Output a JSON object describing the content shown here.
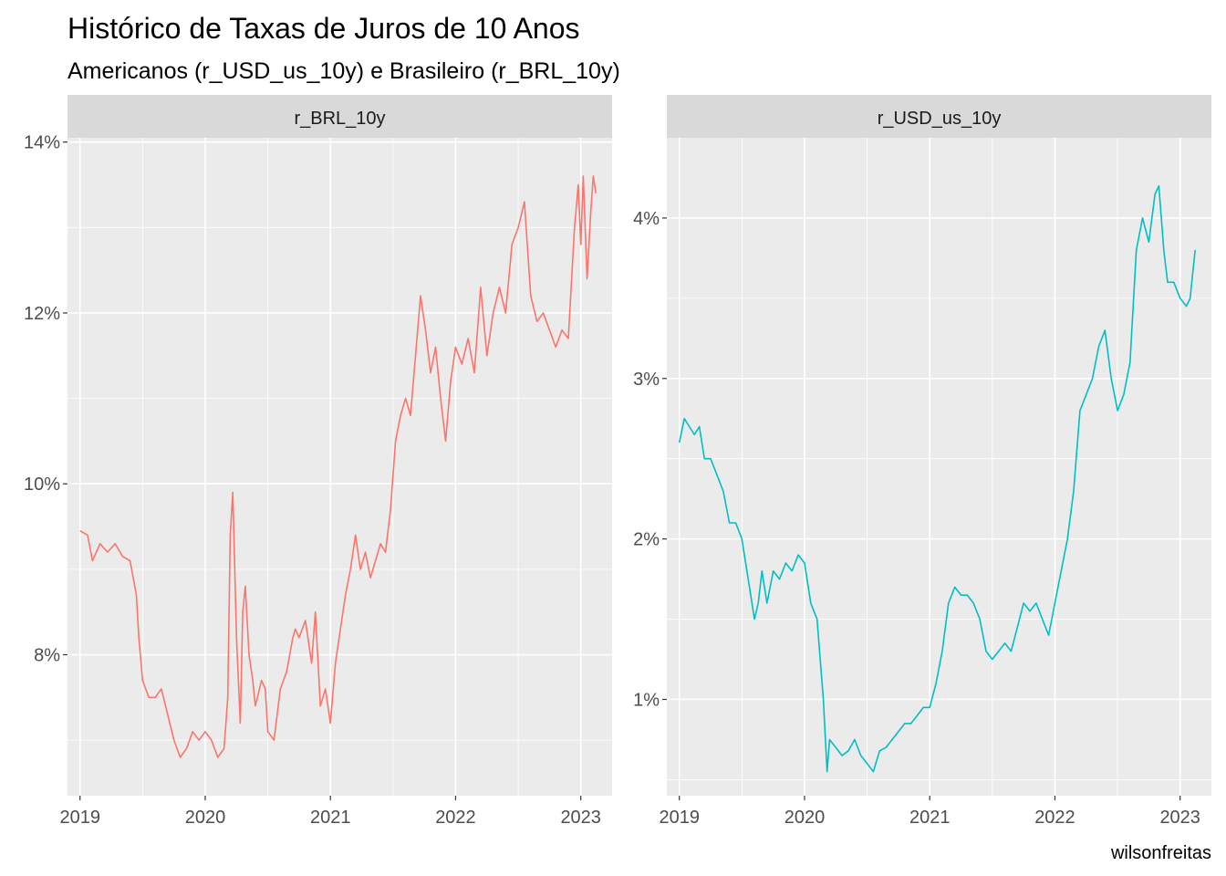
{
  "chart_data": {
    "type": "line",
    "title": "Histórico de Taxas de Juros de 10 Anos",
    "subtitle": "Americanos (r_USD_us_10y) e Brasileiro (r_BRL_10y)",
    "caption": "wilsonfreitas",
    "x_axis": {
      "label": "",
      "range": [
        2018.9,
        2023.25
      ],
      "ticks": [
        2019,
        2020,
        2021,
        2022,
        2023
      ],
      "tick_labels": [
        "2019",
        "2020",
        "2021",
        "2022",
        "2023"
      ]
    },
    "facets": [
      {
        "name": "r_BRL_10y",
        "color": "#F8766D",
        "ylim": [
          6.35,
          14.05
        ],
        "y_ticks": [
          8,
          10,
          12,
          14
        ],
        "y_tick_labels": [
          "8%",
          "10%",
          "12%",
          "14%"
        ],
        "x": [
          2019.0,
          2019.06,
          2019.1,
          2019.16,
          2019.22,
          2019.28,
          2019.34,
          2019.4,
          2019.45,
          2019.47,
          2019.5,
          2019.55,
          2019.6,
          2019.65,
          2019.7,
          2019.75,
          2019.8,
          2019.85,
          2019.9,
          2019.95,
          2020.0,
          2020.05,
          2020.1,
          2020.15,
          2020.18,
          2020.2,
          2020.22,
          2020.25,
          2020.28,
          2020.3,
          2020.32,
          2020.35,
          2020.38,
          2020.4,
          2020.45,
          2020.48,
          2020.5,
          2020.55,
          2020.6,
          2020.65,
          2020.7,
          2020.72,
          2020.75,
          2020.8,
          2020.85,
          2020.88,
          2020.92,
          2020.96,
          2021.0,
          2021.04,
          2021.08,
          2021.12,
          2021.16,
          2021.2,
          2021.24,
          2021.28,
          2021.32,
          2021.36,
          2021.4,
          2021.44,
          2021.48,
          2021.52,
          2021.56,
          2021.6,
          2021.64,
          2021.68,
          2021.72,
          2021.76,
          2021.8,
          2021.84,
          2021.88,
          2021.92,
          2021.96,
          2022.0,
          2022.05,
          2022.1,
          2022.15,
          2022.2,
          2022.25,
          2022.3,
          2022.35,
          2022.4,
          2022.45,
          2022.5,
          2022.55,
          2022.6,
          2022.65,
          2022.7,
          2022.75,
          2022.8,
          2022.85,
          2022.9,
          2022.95,
          2022.98,
          2023.0,
          2023.02,
          2023.05,
          2023.08,
          2023.1,
          2023.12
        ],
        "y": [
          9.45,
          9.4,
          9.1,
          9.3,
          9.2,
          9.3,
          9.15,
          9.1,
          8.7,
          8.2,
          7.7,
          7.5,
          7.5,
          7.6,
          7.3,
          7.0,
          6.8,
          6.9,
          7.1,
          7.0,
          7.1,
          7.0,
          6.8,
          6.9,
          7.5,
          9.4,
          9.9,
          8.2,
          7.2,
          8.5,
          8.8,
          8.0,
          7.7,
          7.4,
          7.7,
          7.6,
          7.1,
          7.0,
          7.6,
          7.8,
          8.2,
          8.3,
          8.2,
          8.4,
          7.9,
          8.5,
          7.4,
          7.6,
          7.2,
          7.9,
          8.3,
          8.7,
          9.0,
          9.4,
          9.0,
          9.2,
          8.9,
          9.1,
          9.3,
          9.2,
          9.7,
          10.5,
          10.8,
          11.0,
          10.8,
          11.5,
          12.2,
          11.8,
          11.3,
          11.6,
          11.0,
          10.5,
          11.2,
          11.6,
          11.4,
          11.7,
          11.3,
          12.3,
          11.5,
          12.0,
          12.3,
          12.0,
          12.8,
          13.0,
          13.3,
          12.2,
          11.9,
          12.0,
          11.8,
          11.6,
          11.8,
          11.7,
          13.0,
          13.5,
          12.8,
          13.6,
          12.4,
          13.2,
          13.6,
          13.4
        ]
      },
      {
        "name": "r_USD_us_10y",
        "color": "#00BFC4",
        "ylim": [
          0.4,
          4.5
        ],
        "y_ticks": [
          1,
          2,
          3,
          4
        ],
        "y_tick_labels": [
          "1%",
          "2%",
          "3%",
          "4%"
        ],
        "x": [
          2019.0,
          2019.04,
          2019.08,
          2019.12,
          2019.16,
          2019.2,
          2019.25,
          2019.3,
          2019.35,
          2019.4,
          2019.45,
          2019.5,
          2019.55,
          2019.6,
          2019.63,
          2019.66,
          2019.7,
          2019.75,
          2019.8,
          2019.85,
          2019.9,
          2019.95,
          2020.0,
          2020.05,
          2020.1,
          2020.15,
          2020.18,
          2020.2,
          2020.25,
          2020.3,
          2020.35,
          2020.4,
          2020.45,
          2020.5,
          2020.55,
          2020.6,
          2020.65,
          2020.7,
          2020.75,
          2020.8,
          2020.85,
          2020.9,
          2020.95,
          2021.0,
          2021.05,
          2021.1,
          2021.15,
          2021.2,
          2021.25,
          2021.3,
          2021.35,
          2021.4,
          2021.45,
          2021.5,
          2021.55,
          2021.6,
          2021.65,
          2021.7,
          2021.75,
          2021.8,
          2021.85,
          2021.9,
          2021.95,
          2022.0,
          2022.05,
          2022.1,
          2022.15,
          2022.2,
          2022.25,
          2022.3,
          2022.35,
          2022.4,
          2022.45,
          2022.5,
          2022.55,
          2022.6,
          2022.65,
          2022.7,
          2022.75,
          2022.8,
          2022.83,
          2022.87,
          2022.9,
          2022.95,
          2023.0,
          2023.05,
          2023.08,
          2023.1,
          2023.12
        ],
        "y": [
          2.6,
          2.75,
          2.7,
          2.65,
          2.7,
          2.5,
          2.5,
          2.4,
          2.3,
          2.1,
          2.1,
          2.0,
          1.75,
          1.5,
          1.6,
          1.8,
          1.6,
          1.8,
          1.75,
          1.85,
          1.8,
          1.9,
          1.85,
          1.6,
          1.5,
          1.0,
          0.55,
          0.75,
          0.7,
          0.65,
          0.68,
          0.75,
          0.65,
          0.6,
          0.55,
          0.68,
          0.7,
          0.75,
          0.8,
          0.85,
          0.85,
          0.9,
          0.95,
          0.95,
          1.1,
          1.3,
          1.6,
          1.7,
          1.65,
          1.65,
          1.6,
          1.5,
          1.3,
          1.25,
          1.3,
          1.35,
          1.3,
          1.45,
          1.6,
          1.55,
          1.6,
          1.5,
          1.4,
          1.6,
          1.8,
          2.0,
          2.3,
          2.8,
          2.9,
          3.0,
          3.2,
          3.3,
          3.0,
          2.8,
          2.9,
          3.1,
          3.8,
          4.0,
          3.85,
          4.15,
          4.2,
          3.8,
          3.6,
          3.6,
          3.5,
          3.45,
          3.5,
          3.65,
          3.8
        ]
      }
    ]
  }
}
